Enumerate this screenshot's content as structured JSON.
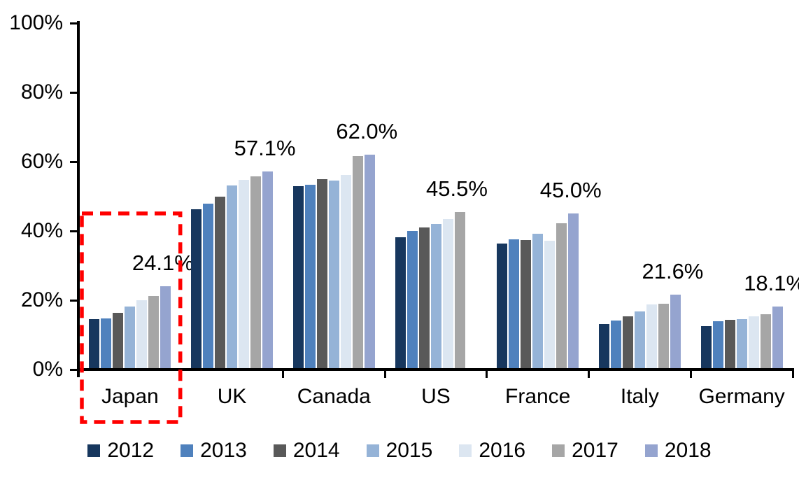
{
  "chart_data": {
    "type": "bar",
    "title": "",
    "categories": [
      "Japan",
      "UK",
      "Canada",
      "US",
      "France",
      "Italy",
      "Germany"
    ],
    "series": [
      {
        "name": "2012",
        "color": "#17375E",
        "values": [
          14.6,
          46.2,
          52.9,
          38.1,
          36.4,
          13.1,
          12.6
        ]
      },
      {
        "name": "2013",
        "color": "#4F81BD",
        "values": [
          14.8,
          47.8,
          53.4,
          40.0,
          37.5,
          14.1,
          14.0
        ]
      },
      {
        "name": "2014",
        "color": "#595959",
        "values": [
          16.4,
          49.9,
          54.9,
          41.0,
          37.4,
          15.3,
          14.3
        ]
      },
      {
        "name": "2015",
        "color": "#95B3D7",
        "values": [
          18.1,
          53.2,
          54.6,
          42.1,
          39.1,
          16.8,
          14.6
        ]
      },
      {
        "name": "2016",
        "color": "#DCE6F1",
        "values": [
          20.1,
          54.7,
          56.1,
          43.5,
          37.2,
          18.8,
          15.3
        ]
      },
      {
        "name": "2017",
        "color": "#A6A6A6",
        "values": [
          21.2,
          55.7,
          61.6,
          45.5,
          42.3,
          19.0,
          15.9
        ]
      },
      {
        "name": "2018",
        "color": "#95A4CF",
        "values": [
          24.1,
          57.1,
          62.0,
          null,
          45.0,
          21.6,
          18.1
        ]
      }
    ],
    "data_labels": [
      "24.1%",
      "57.1%",
      "62.0%",
      "45.5%",
      "45.0%",
      "21.6%",
      "18.1%"
    ],
    "ylim": [
      0,
      100
    ],
    "yticks": [
      "0%",
      "20%",
      "40%",
      "60%",
      "80%",
      "100%"
    ],
    "grid": false,
    "legend_position": "bottom",
    "axis_color": "#000000",
    "background_color": "#FFFFFF",
    "highlight": {
      "category": "Japan",
      "style": "dashed-box",
      "color": "#FF0000"
    }
  }
}
